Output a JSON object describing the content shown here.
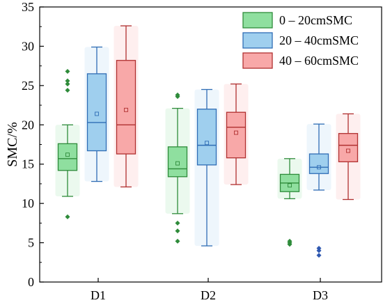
{
  "chart_data": {
    "type": "box",
    "title": "",
    "xlabel": "",
    "ylabel": "SMC/%",
    "ylim": [
      0,
      35
    ],
    "yticks": [
      0,
      5,
      10,
      15,
      20,
      25,
      30,
      35
    ],
    "categories": [
      "D1",
      "D2",
      "D3"
    ],
    "grid": false,
    "legend_position": "top-right",
    "series": [
      {
        "name": "0 – 20cmSMC",
        "fill": "#8fdf9f",
        "stroke": "#2e8b3a",
        "outlier_color": "#2e8b3a",
        "boxes": [
          {
            "whisker_low": 10.9,
            "q1": 14.2,
            "median": 15.7,
            "q3": 17.6,
            "whisker_high": 20.0,
            "mean": 16.2,
            "outliers": [
              8.3,
              24.4,
              25.2,
              25.6,
              26.8
            ]
          },
          {
            "whisker_low": 8.7,
            "q1": 13.4,
            "median": 14.4,
            "q3": 17.2,
            "whisker_high": 22.1,
            "mean": 15.1,
            "outliers": [
              5.2,
              6.5,
              7.5,
              23.6,
              23.8
            ]
          },
          {
            "whisker_low": 10.6,
            "q1": 11.5,
            "median": 12.6,
            "q3": 13.7,
            "whisker_high": 15.7,
            "mean": 12.3,
            "outliers": [
              4.8,
              5.0,
              5.2
            ]
          }
        ]
      },
      {
        "name": "20 – 40cmSMC",
        "fill": "#9fcfee",
        "stroke": "#2f6db5",
        "outlier_color": "#2f58b0",
        "boxes": [
          {
            "whisker_low": 12.8,
            "q1": 16.7,
            "median": 20.3,
            "q3": 26.5,
            "whisker_high": 29.9,
            "mean": 21.4,
            "outliers": []
          },
          {
            "whisker_low": 4.6,
            "q1": 14.9,
            "median": 17.4,
            "q3": 22.0,
            "whisker_high": 24.5,
            "mean": 17.7,
            "outliers": []
          },
          {
            "whisker_low": 11.7,
            "q1": 13.8,
            "median": 14.6,
            "q3": 16.3,
            "whisker_high": 20.1,
            "mean": 14.6,
            "outliers": [
              3.4,
              4.0,
              4.3
            ]
          }
        ]
      },
      {
        "name": "40 – 60cmSMC",
        "fill": "#f8a8a8",
        "stroke": "#b03030",
        "outlier_color": "#b03030",
        "boxes": [
          {
            "whisker_low": 12.1,
            "q1": 16.3,
            "median": 20.0,
            "q3": 28.2,
            "whisker_high": 32.6,
            "mean": 21.9,
            "outliers": []
          },
          {
            "whisker_low": 12.4,
            "q1": 15.8,
            "median": 19.7,
            "q3": 21.6,
            "whisker_high": 25.2,
            "mean": 19.0,
            "outliers": []
          },
          {
            "whisker_low": 10.5,
            "q1": 15.3,
            "median": 17.4,
            "q3": 18.9,
            "whisker_high": 21.4,
            "mean": 16.7,
            "outliers": []
          }
        ]
      }
    ]
  }
}
